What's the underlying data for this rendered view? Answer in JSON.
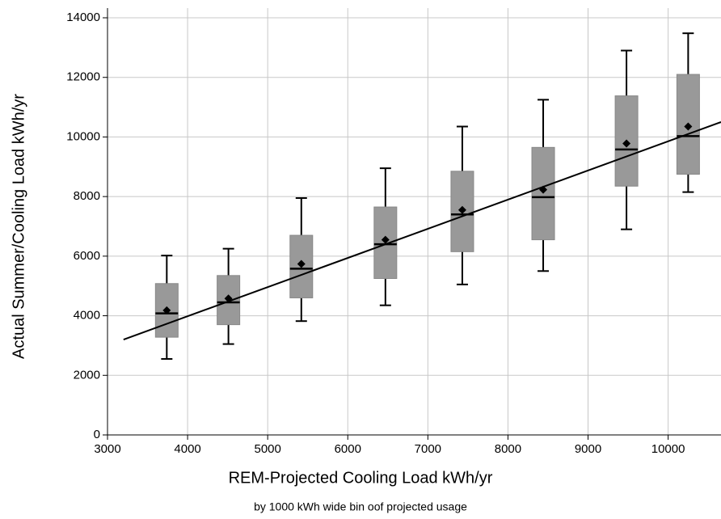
{
  "chart_data": {
    "type": "box",
    "x_label": "REM-Projected Cooling Load kWh/yr",
    "y_label": "Actual Summer/Cooling Load kWh/yr",
    "subtitle": "by 1000 kWh wide bin oof projected usage",
    "x": [
      3740,
      4510,
      5420,
      6470,
      7430,
      8440,
      9480,
      10250
    ],
    "whisker_low": [
      2550,
      3050,
      3820,
      4350,
      5050,
      5500,
      6900,
      8150
    ],
    "q1": [
      3280,
      3700,
      4600,
      5250,
      6150,
      6550,
      8350,
      8750
    ],
    "median": [
      4080,
      4450,
      5580,
      6400,
      7400,
      7980,
      9580,
      10030
    ],
    "q3": [
      5080,
      5350,
      6700,
      7650,
      8850,
      9650,
      11380,
      12100
    ],
    "whisker_high": [
      6020,
      6250,
      7950,
      8950,
      10350,
      11250,
      12900,
      13480
    ],
    "mean": [
      4180,
      4580,
      5740,
      6550,
      7550,
      8230,
      9780,
      10350
    ],
    "box_color": "#999999",
    "fit_line": {
      "x": [
        3200,
        10660
      ],
      "values": [
        3200,
        10500
      ],
      "color": "#000000"
    },
    "xlim": [
      3000,
      10660
    ],
    "ylim": [
      0,
      14000
    ],
    "xticks": [
      3000,
      4000,
      5000,
      6000,
      7000,
      8000,
      9000,
      10000
    ],
    "yticks": [
      0,
      2000,
      4000,
      6000,
      8000,
      10000,
      12000,
      14000
    ],
    "grid": true
  }
}
